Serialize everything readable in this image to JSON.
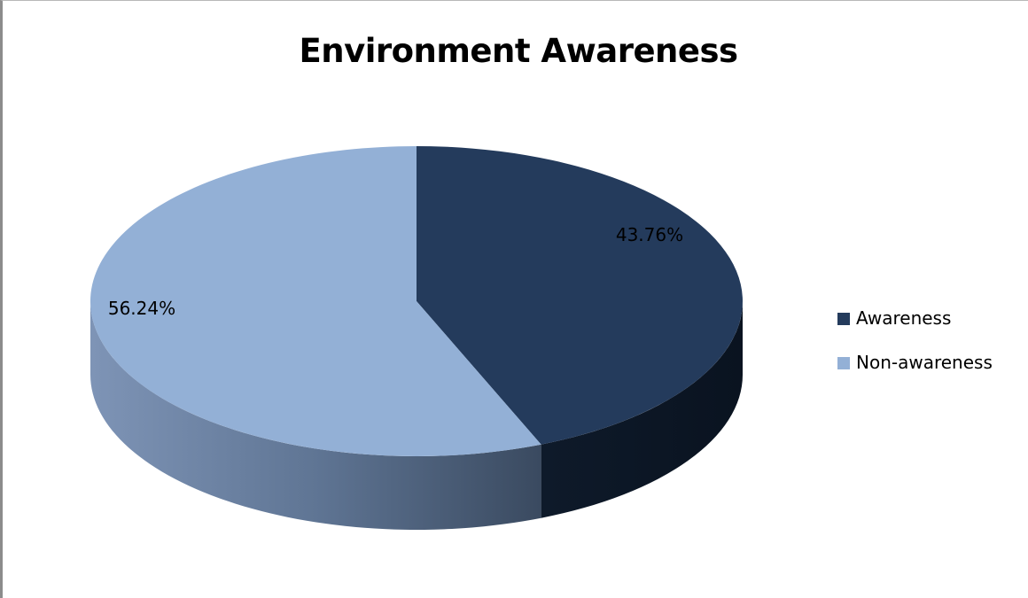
{
  "chart_data": {
    "type": "pie",
    "title": "Environment Awareness",
    "categories": [
      "Awareness",
      "Non-awareness"
    ],
    "values": [
      43.76,
      56.24
    ],
    "data_labels": [
      "43.76%",
      "56.24%"
    ],
    "colors": [
      "#243b5c",
      "#93b0d6"
    ],
    "legend": "right",
    "style": "3d"
  }
}
